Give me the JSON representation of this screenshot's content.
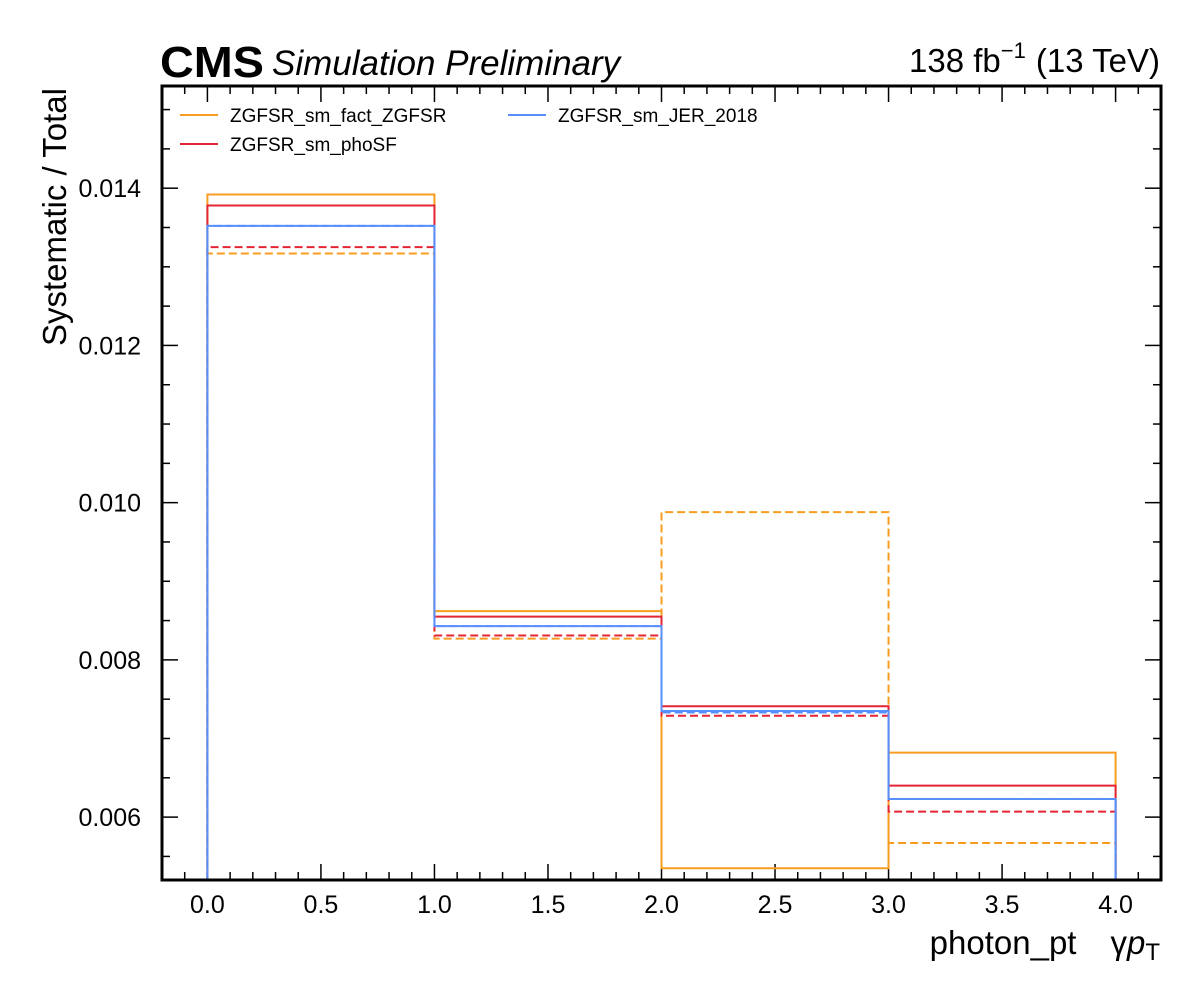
{
  "header": {
    "experiment": "CMS",
    "extra": "Simulation Preliminary",
    "lumi_value": "138 fb",
    "lumi_exponent": "−1",
    "lumi_energy": "(13 TeV)"
  },
  "chart_data": {
    "type": "line",
    "drawstyle": "step",
    "xlabel": "photon_pt",
    "xlabel_symbol_prefix": "γ",
    "xlabel_symbol_var": "p",
    "xlabel_symbol_sub": "T",
    "ylabel": "Systematic / Total",
    "xlim": [
      -0.2,
      4.2
    ],
    "ylim": [
      0.0052,
      0.0153
    ],
    "x_ticks": [
      0.0,
      0.5,
      1.0,
      1.5,
      2.0,
      2.5,
      3.0,
      3.5,
      4.0
    ],
    "x_tick_labels": [
      "0.0",
      "0.5",
      "1.0",
      "1.5",
      "2.0",
      "2.5",
      "3.0",
      "3.5",
      "4.0"
    ],
    "y_ticks": [
      0.006,
      0.008,
      0.01,
      0.012,
      0.014
    ],
    "y_tick_labels": [
      "0.006",
      "0.008",
      "0.010",
      "0.012",
      "0.014"
    ],
    "bin_edges": [
      0,
      1,
      2,
      3,
      4
    ],
    "legend_position": "top-left",
    "legend_columns": 2,
    "grid": false,
    "series": [
      {
        "name": "ZGFSR_sm_fact_ZGFSR",
        "color": "#f89c20",
        "linestyle": "solid",
        "values": [
          0.01392,
          0.00862,
          0.00535,
          0.00682
        ]
      },
      {
        "color": "#f89c20",
        "linestyle": "dashed",
        "values": [
          0.01317,
          0.00827,
          0.00988,
          0.00567
        ]
      },
      {
        "name": "ZGFSR_sm_phoSF",
        "color": "#e42536",
        "linestyle": "solid",
        "values": [
          0.01378,
          0.00855,
          0.00741,
          0.0064
        ]
      },
      {
        "color": "#e42536",
        "linestyle": "dashed",
        "values": [
          0.01325,
          0.00831,
          0.00729,
          0.00607
        ]
      },
      {
        "name": "ZGFSR_sm_JER_2018",
        "color": "#5790fc",
        "linestyle": "solid",
        "values": [
          0.01352,
          0.00843,
          0.00735,
          0.00623
        ]
      },
      {
        "color": "#5790fc",
        "linestyle": "dashed",
        "values": [
          0.01352,
          0.00843,
          0.00733,
          0.00623
        ]
      }
    ]
  }
}
